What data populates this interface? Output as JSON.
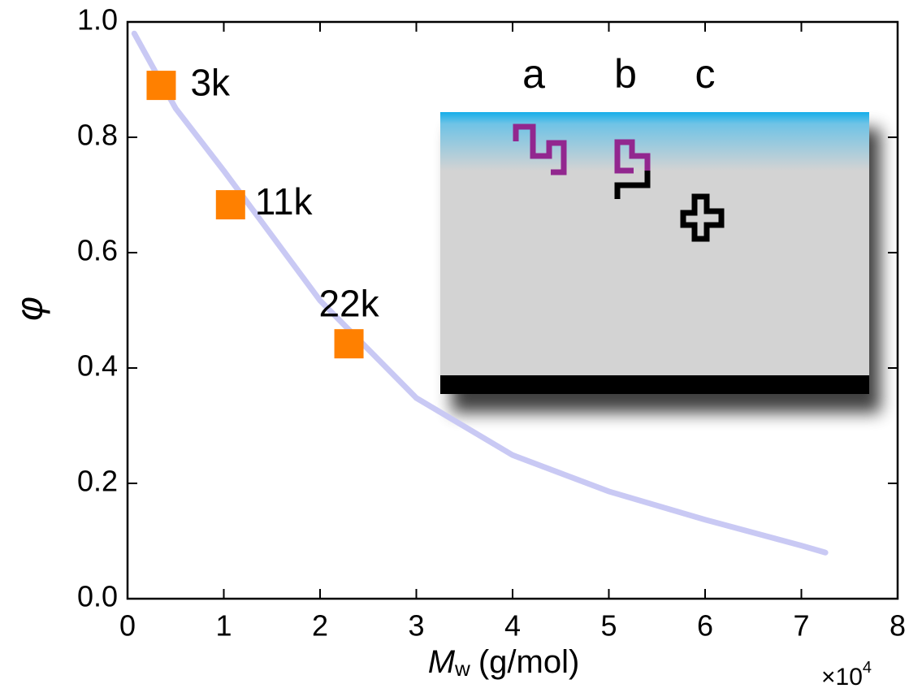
{
  "chart_data": {
    "type": "scatter",
    "xlabel": {
      "symbol": "M",
      "subscript": "w",
      "unit": "(g/mol)"
    },
    "x_multiplier": {
      "base": "×10",
      "exponent": "4"
    },
    "ylabel": "φ",
    "xlim": [
      0,
      8
    ],
    "xticks": [
      0,
      1,
      2,
      3,
      4,
      5,
      6,
      7,
      8
    ],
    "ylim": [
      0,
      1
    ],
    "yticks": [
      {
        "value": 0,
        "label": "0.0"
      },
      0.2,
      0.4,
      0.6,
      0.8,
      {
        "value": 1,
        "label": "1.0"
      }
    ],
    "series": [
      {
        "type": "line",
        "color": "#c9c9f4",
        "x": [
          0.07,
          0.5,
          1,
          2,
          3,
          4,
          5,
          6,
          7,
          7.25
        ],
        "values": [
          0.98,
          0.85,
          0.742,
          0.517,
          0.348,
          0.249,
          0.186,
          0.137,
          0.092,
          0.08
        ]
      },
      {
        "type": "scatter",
        "color": "#ff8000",
        "x": [
          0.35,
          1.07,
          2.3
        ],
        "values": [
          0.89,
          0.683,
          0.442
        ],
        "point_labels": [
          "3k",
          "11k",
          "22k"
        ]
      }
    ],
    "inset": {
      "labels": [
        "a",
        "b",
        "c"
      ]
    }
  }
}
